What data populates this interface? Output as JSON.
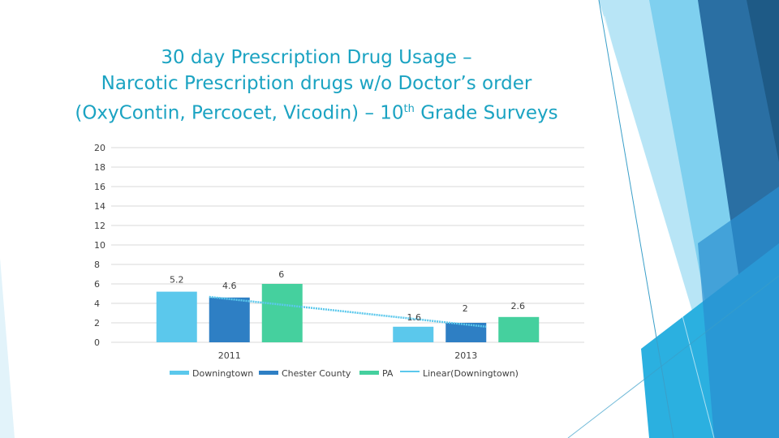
{
  "slide": {
    "title_line1": "30 day Prescription Drug Usage –",
    "title_line2": "Narcotic Prescription drugs w/o Doctor’s order",
    "title_line3_pre": "(OxyContin, Percocet, Vicodin) – 10",
    "title_line3_sup": "th",
    "title_line3_post": " Grade Surveys"
  },
  "colors": {
    "title": "#1ba3c2",
    "downingtown": "#5bc8ec",
    "chester": "#2e7fc4",
    "pa": "#45d09e",
    "trend": "#5bc8ec",
    "grid": "#d9d9d9"
  },
  "chart_data": {
    "type": "bar",
    "categories": [
      "2011",
      "2013"
    ],
    "series": [
      {
        "name": "Downingtown",
        "values": [
          5.2,
          1.6
        ],
        "labels": [
          "5.2",
          "1.6"
        ]
      },
      {
        "name": "Chester County",
        "values": [
          4.6,
          2
        ],
        "labels": [
          "4.6",
          "2"
        ]
      },
      {
        "name": "PA",
        "values": [
          6,
          2.6
        ],
        "labels": [
          "6",
          "2.6"
        ]
      }
    ],
    "trendline": {
      "name": "Linear(Downingtown)",
      "series": "Downingtown"
    },
    "ylim": [
      0,
      20
    ],
    "yticks": [
      "0",
      "2",
      "4",
      "6",
      "8",
      "10",
      "12",
      "14",
      "16",
      "18",
      "20"
    ],
    "grid": true,
    "legend_position": "bottom"
  }
}
